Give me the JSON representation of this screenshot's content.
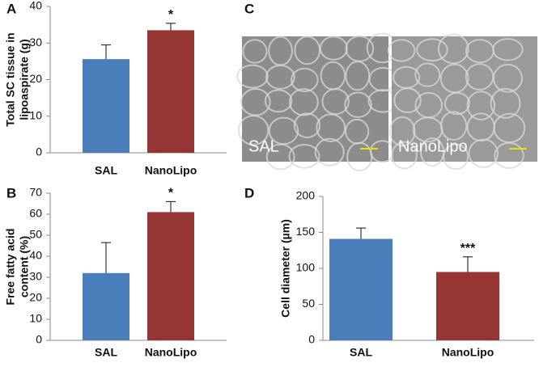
{
  "chart_data": [
    {
      "type": "bar",
      "panel_label": "A",
      "ylabel": [
        "Total SC tissue in",
        "lipoaspirate (g)"
      ],
      "categories": [
        "SAL",
        "NanoLipo"
      ],
      "values": [
        25.6,
        33.5
      ],
      "errors": [
        3.9,
        1.9
      ],
      "colors": [
        "#4a7ebb",
        "#963634"
      ],
      "annotations": [
        null,
        "*"
      ],
      "ylim": [
        0,
        40
      ],
      "yticks": [
        0,
        10,
        20,
        30,
        40
      ]
    },
    {
      "type": "bar",
      "panel_label": "B",
      "ylabel": [
        "Free fatty acid",
        "content (%)"
      ],
      "categories": [
        "SAL",
        "NanoLipo"
      ],
      "values": [
        32,
        61
      ],
      "errors": [
        14.5,
        5
      ],
      "colors": [
        "#4a7ebb",
        "#963634"
      ],
      "annotations": [
        null,
        "*"
      ],
      "ylim": [
        0,
        70
      ],
      "yticks": [
        0,
        10,
        20,
        30,
        40,
        50,
        60,
        70
      ]
    },
    {
      "type": "image",
      "panel_label": "C",
      "images": [
        {
          "label": "SAL"
        },
        {
          "label": "NanoLipo"
        }
      ]
    },
    {
      "type": "bar",
      "panel_label": "D",
      "ylabel": [
        "Cell diameter (µm)"
      ],
      "categories": [
        "SAL",
        "NanoLipo"
      ],
      "values": [
        141,
        95
      ],
      "errors": [
        15,
        21
      ],
      "colors": [
        "#4a7ebb",
        "#963634"
      ],
      "annotations": [
        null,
        "***"
      ],
      "ylim": [
        0,
        200
      ],
      "yticks": [
        0,
        50,
        100,
        150,
        200
      ]
    }
  ]
}
